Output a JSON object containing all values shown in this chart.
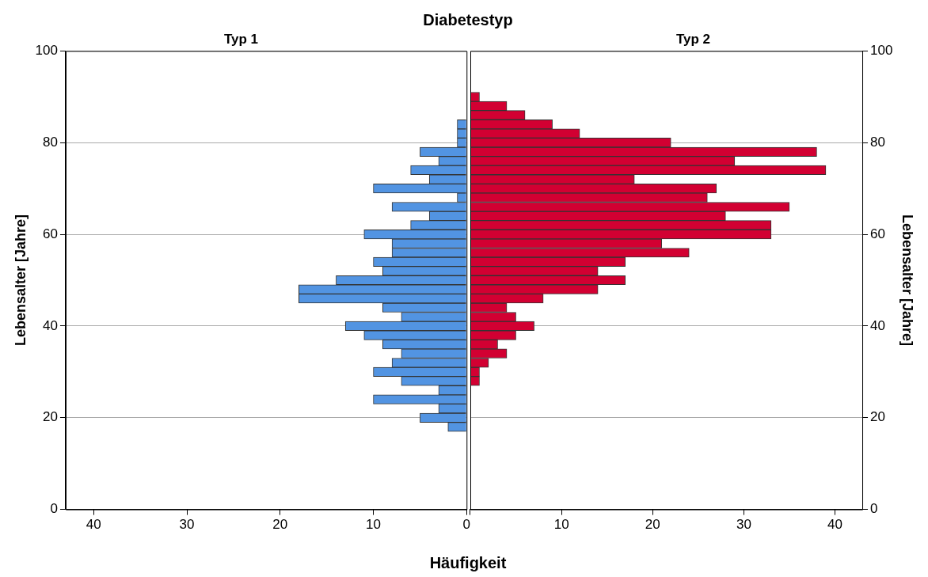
{
  "chart_data": [
    {
      "type": "histogram",
      "orientation": "horizontal",
      "title": "Typ 1",
      "xlabel": "Häufigkeit",
      "ylabel": "Lebensalter [Jahre]",
      "annotations": [
        "Diabetestyp"
      ],
      "bins": [
        17,
        19,
        21,
        23,
        25,
        27,
        29,
        31,
        33,
        35,
        37,
        39,
        41,
        43,
        45,
        47,
        49,
        51,
        53,
        55,
        57,
        59,
        61,
        63,
        65,
        67,
        69,
        71,
        73,
        75,
        77,
        79,
        81,
        83,
        85
      ],
      "values": [
        2,
        5,
        3,
        10,
        3,
        7,
        10,
        8,
        7,
        9,
        11,
        13,
        7,
        9,
        18,
        18,
        14,
        9,
        10,
        8,
        8,
        11,
        6,
        4,
        8,
        1,
        10,
        4,
        6,
        3,
        5,
        1,
        1,
        1
      ],
      "color": "#5294e2",
      "xlim": [
        43,
        0
      ],
      "xticks": [
        40,
        30,
        20,
        10,
        0
      ],
      "ylim": [
        0,
        100
      ],
      "yticks": [
        0,
        20,
        40,
        60,
        80,
        100
      ],
      "grid": "y"
    },
    {
      "type": "histogram",
      "orientation": "horizontal",
      "title": "Typ 2",
      "ylabel": "Lebensalter [Jahre]",
      "bins": [
        27,
        29,
        31,
        33,
        35,
        37,
        39,
        41,
        43,
        45,
        47,
        49,
        51,
        53,
        55,
        57,
        59,
        61,
        63,
        65,
        67,
        69,
        71,
        73,
        75,
        77,
        79,
        81,
        83,
        85,
        87,
        89,
        91
      ],
      "values": [
        1,
        1,
        2,
        4,
        3,
        5,
        7,
        5,
        4,
        8,
        14,
        17,
        14,
        17,
        24,
        21,
        33,
        33,
        28,
        35,
        26,
        27,
        18,
        39,
        29,
        38,
        22,
        12,
        9,
        6,
        4,
        1
      ],
      "color": "#d20032",
      "xlim": [
        0,
        43
      ],
      "xticks": [
        {
          "value": 0,
          "label": null
        },
        10,
        20,
        30,
        40
      ],
      "ylim": [
        0,
        100
      ],
      "yticks": [
        0,
        20,
        40,
        60,
        80,
        100
      ],
      "grid": "y"
    }
  ]
}
